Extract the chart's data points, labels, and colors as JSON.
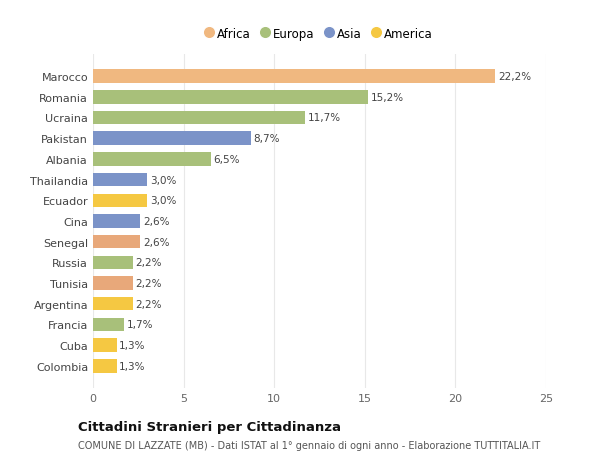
{
  "categories": [
    "Colombia",
    "Cuba",
    "Francia",
    "Argentina",
    "Tunisia",
    "Russia",
    "Senegal",
    "Cina",
    "Ecuador",
    "Thailandia",
    "Albania",
    "Pakistan",
    "Ucraina",
    "Romania",
    "Marocco"
  ],
  "values": [
    1.3,
    1.3,
    1.7,
    2.2,
    2.2,
    2.2,
    2.6,
    2.6,
    3.0,
    3.0,
    6.5,
    8.7,
    11.7,
    15.2,
    22.2
  ],
  "colors": [
    "#F5C842",
    "#F5C842",
    "#A8C07A",
    "#F5C842",
    "#E8A87A",
    "#A8C07A",
    "#E8A87A",
    "#7B93C8",
    "#F5C842",
    "#7B93C8",
    "#A8C07A",
    "#7B93C8",
    "#A8C07A",
    "#A8C07A",
    "#F0B880"
  ],
  "labels": [
    "1,3%",
    "1,3%",
    "1,7%",
    "2,2%",
    "2,2%",
    "2,2%",
    "2,6%",
    "2,6%",
    "3,0%",
    "3,0%",
    "6,5%",
    "8,7%",
    "11,7%",
    "15,2%",
    "22,2%"
  ],
  "legend": [
    {
      "label": "Africa",
      "color": "#F0B880"
    },
    {
      "label": "Europa",
      "color": "#A8C07A"
    },
    {
      "label": "Asia",
      "color": "#7B93C8"
    },
    {
      "label": "America",
      "color": "#F5C842"
    }
  ],
  "title": "Cittadini Stranieri per Cittadinanza",
  "subtitle": "COMUNE DI LAZZATE (MB) - Dati ISTAT al 1° gennaio di ogni anno - Elaborazione TUTTITALIA.IT",
  "xlim": [
    0,
    25
  ],
  "xticks": [
    0,
    5,
    10,
    15,
    20,
    25
  ],
  "bg_color": "#ffffff",
  "grid_color": "#e8e8e8"
}
